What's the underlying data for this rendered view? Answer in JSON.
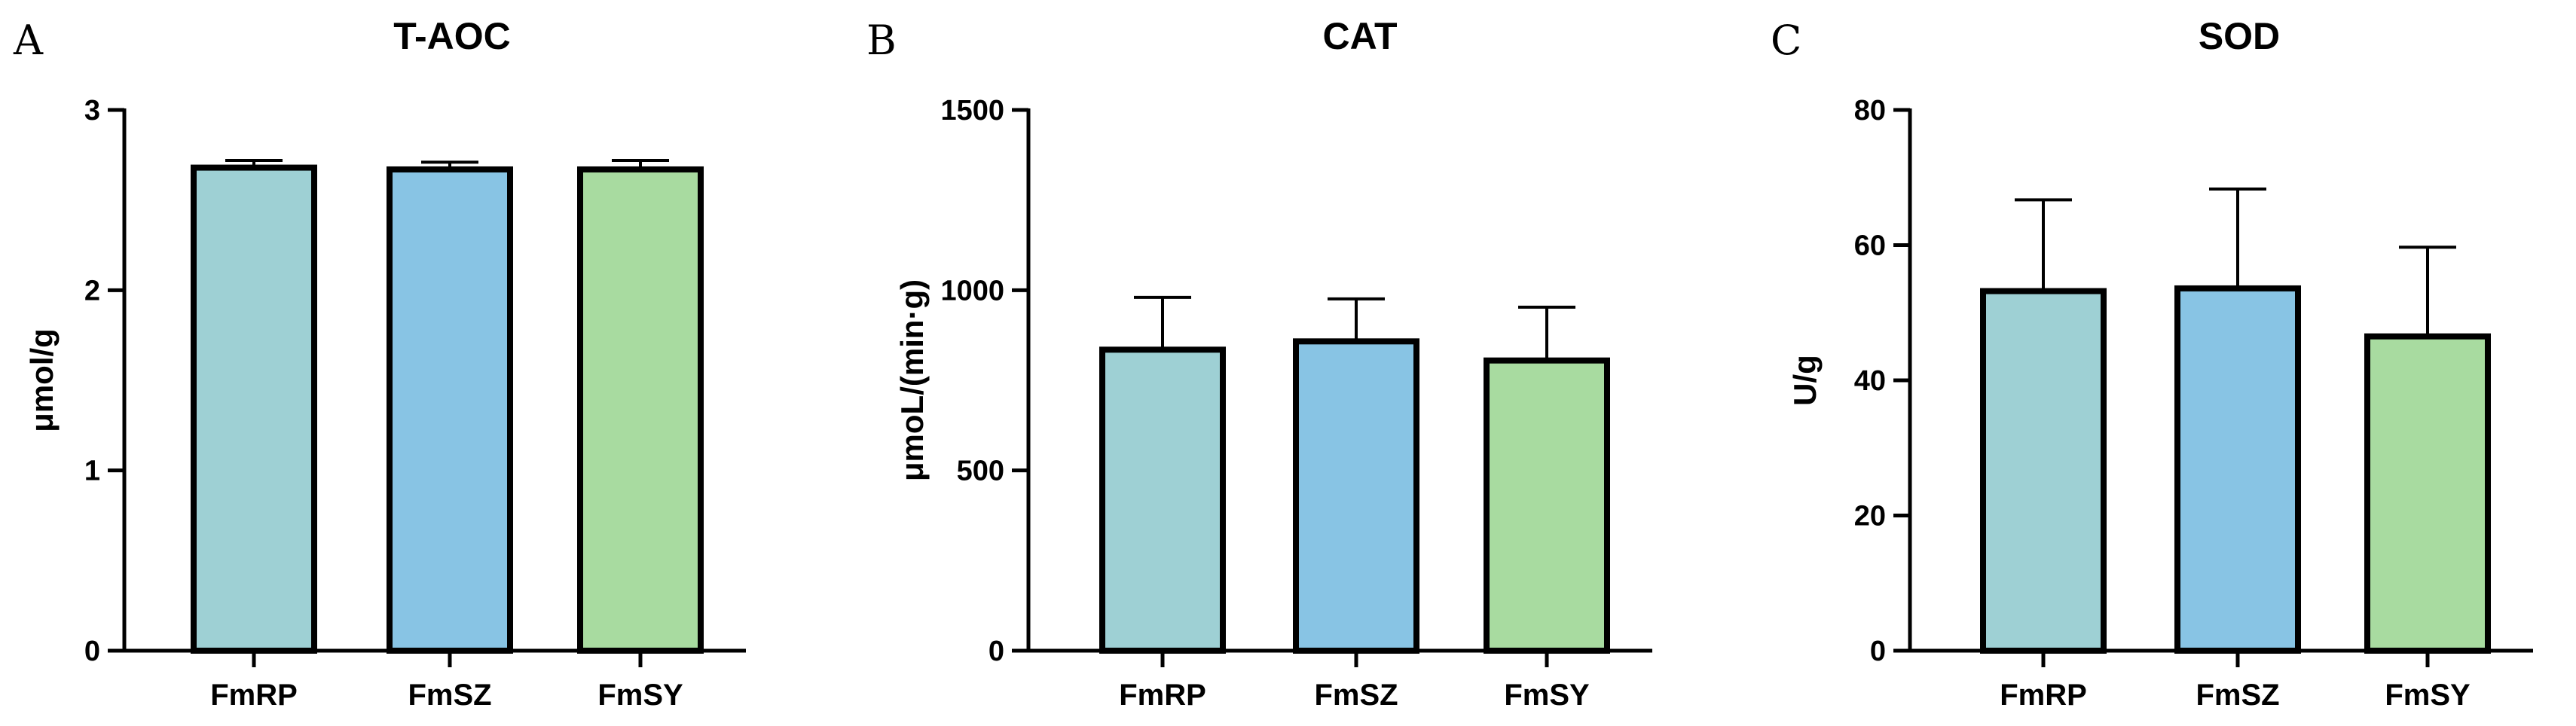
{
  "panels": [
    {
      "letter": "A",
      "chart_data": {
        "type": "bar",
        "title": "T-AOC",
        "ylabel": "μmol/g",
        "xlabel": "",
        "categories": [
          "FmRP",
          "FmSZ",
          "FmSY"
        ],
        "values": [
          2.68,
          2.67,
          2.67
        ],
        "errors": [
          0.04,
          0.04,
          0.05
        ],
        "ylim": [
          0,
          3
        ],
        "yticks": [
          0,
          1,
          2,
          3
        ],
        "colors": [
          "#9ED0D4",
          "#88C4E4",
          "#A8DBA0"
        ]
      }
    },
    {
      "letter": "B",
      "chart_data": {
        "type": "bar",
        "title": "CAT",
        "ylabel": "μmoL/(min·g)",
        "xlabel": "",
        "categories": [
          "FmRP",
          "FmSZ",
          "FmSY"
        ],
        "values": [
          835,
          858,
          805
        ],
        "errors": [
          145,
          118,
          148
        ],
        "ylim": [
          0,
          1500
        ],
        "yticks": [
          0,
          500,
          1000,
          1500
        ],
        "colors": [
          "#9ED0D4",
          "#88C4E4",
          "#A8DBA0"
        ]
      }
    },
    {
      "letter": "C",
      "chart_data": {
        "type": "bar",
        "title": "SOD",
        "ylabel": "U/g",
        "xlabel": "",
        "categories": [
          "FmRP",
          "FmSZ",
          "FmSY"
        ],
        "values": [
          53.2,
          53.6,
          46.5
        ],
        "errors": [
          13.5,
          14.7,
          13.2
        ],
        "ylim": [
          0,
          80
        ],
        "yticks": [
          0,
          20,
          40,
          60,
          80
        ],
        "colors": [
          "#9ED0D4",
          "#88C4E4",
          "#A8DBA0"
        ]
      }
    }
  ]
}
